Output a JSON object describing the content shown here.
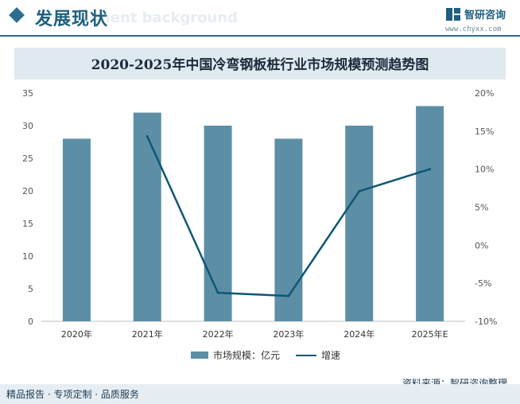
{
  "header": {
    "section_title": "发展现状",
    "bg_watermark": "ment background",
    "logo_name": "智研咨询",
    "logo_url": "www.chyxx.com"
  },
  "footer": {
    "left_text": "精品报告 · 专项定制 · 品质服务",
    "source": "资料来源：智研咨询整理"
  },
  "chart_data": {
    "type": "bar",
    "title": "2020-2025年中国冷弯钢板桩行业市场规模预测趋势图",
    "categories": [
      "2020年",
      "2021年",
      "2022年",
      "2023年",
      "2024年",
      "2025年E"
    ],
    "series": [
      {
        "name": "市场规模：亿元",
        "type": "bar",
        "axis": "left",
        "color": "#5c8fa6",
        "values": [
          28,
          32,
          30,
          28,
          30,
          33
        ]
      },
      {
        "name": "增速",
        "type": "line",
        "axis": "right",
        "color": "#0d5874",
        "values": [
          null,
          14.3,
          -6.25,
          -6.67,
          7.1,
          10.0
        ]
      }
    ],
    "y_left": {
      "range": [
        0,
        35
      ],
      "ticks": [
        "0",
        "5",
        "10",
        "15",
        "20",
        "25",
        "30",
        "35"
      ]
    },
    "y_right": {
      "range": [
        -10,
        20
      ],
      "ticks": [
        "-10%",
        "-5%",
        "0%",
        "5%",
        "10%",
        "15%",
        "20%"
      ]
    },
    "grid": false,
    "legend": "bottom"
  }
}
